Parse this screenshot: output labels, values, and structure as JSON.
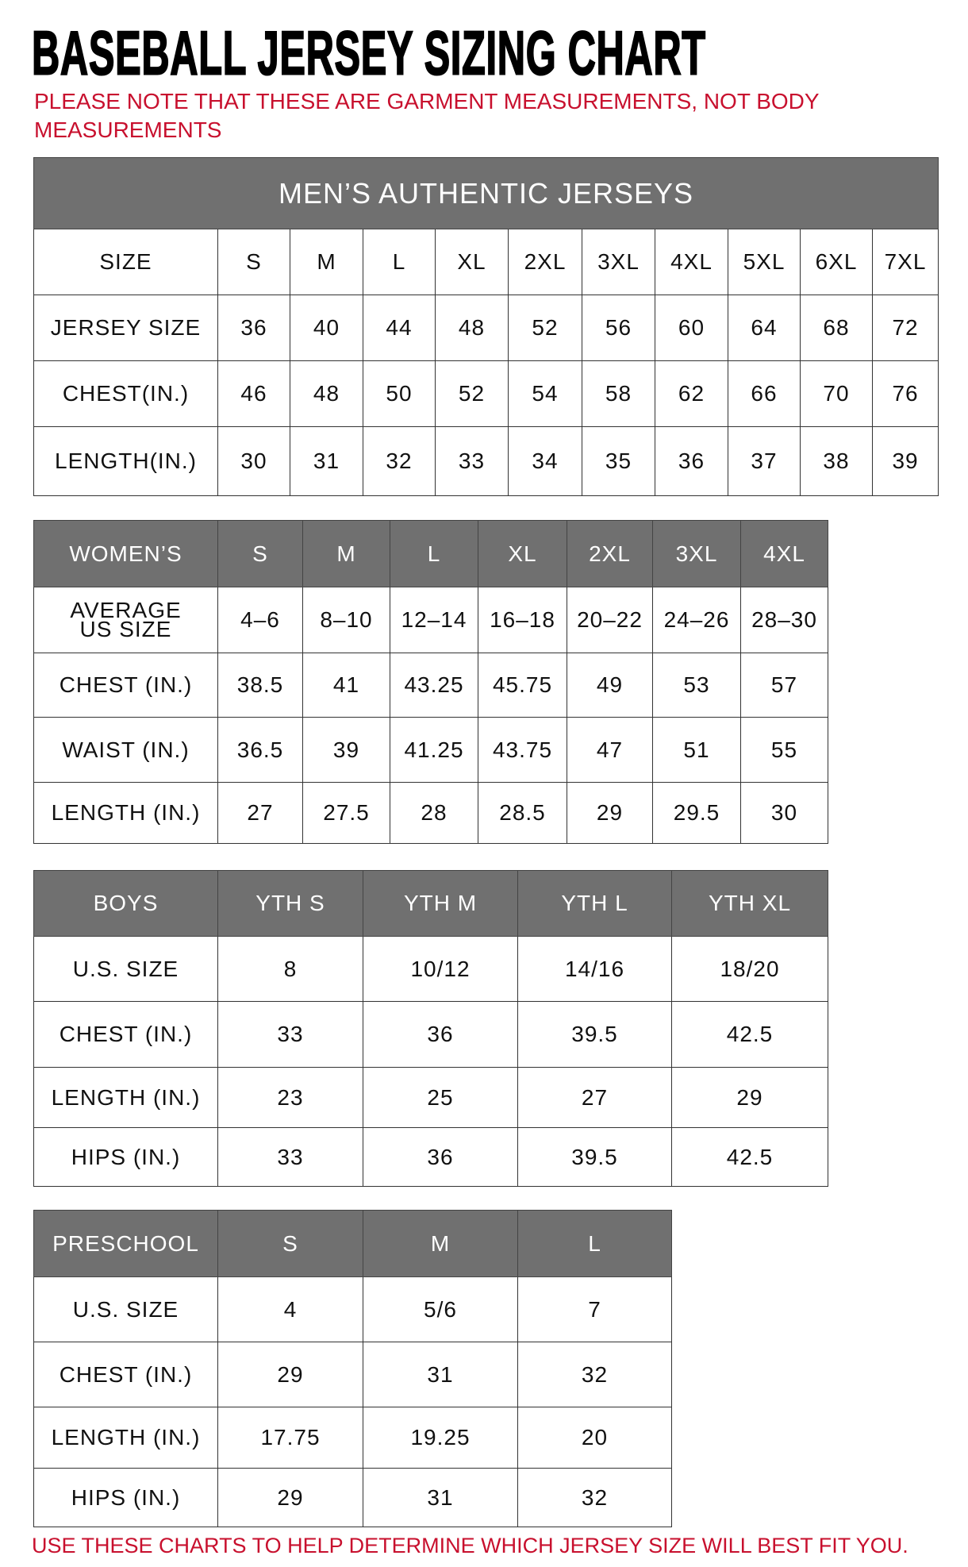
{
  "title": "BASEBALL JERSEY SIZING CHART",
  "note": "PLEASE NOTE THAT THESE ARE GARMENT MEASUREMENTS, NOT BODY MEASUREMENTS",
  "footer": "USE THESE CHARTS TO HELP DETERMINE WHICH JERSEY SIZE WILL BEST FIT YOU.",
  "colors": {
    "header_gray": "#707070",
    "note_red": "#c8102e"
  },
  "tables": [
    {
      "id": "mens",
      "banner": "MEN’S AUTHENTIC JERSEYS",
      "header": [
        "SIZE",
        "S",
        "M",
        "L",
        "XL",
        "2XL",
        "3XL",
        "4XL",
        "5XL",
        "6XL",
        "7XL"
      ],
      "header_shaded": false,
      "rows": [
        [
          "JERSEY SIZE",
          "36",
          "40",
          "44",
          "48",
          "52",
          "56",
          "60",
          "64",
          "68",
          "72"
        ],
        [
          "CHEST(IN.)",
          "46",
          "48",
          "50",
          "52",
          "54",
          "58",
          "62",
          "66",
          "70",
          "76"
        ],
        [
          "LENGTH(IN.)",
          "30",
          "31",
          "32",
          "33",
          "34",
          "35",
          "36",
          "37",
          "38",
          "39"
        ]
      ]
    },
    {
      "id": "womens",
      "header": [
        "WOMEN’S",
        "S",
        "M",
        "L",
        "XL",
        "2XL",
        "3XL",
        "4XL"
      ],
      "header_shaded": true,
      "rows": [
        [
          "AVERAGE US SIZE",
          "4–6",
          "8–10",
          "12–14",
          "16–18",
          "20–22",
          "24–26",
          "28–30"
        ],
        [
          "CHEST (IN.)",
          "38.5",
          "41",
          "43.25",
          "45.75",
          "49",
          "53",
          "57"
        ],
        [
          "WAIST (IN.)",
          "36.5",
          "39",
          "41.25",
          "43.75",
          "47",
          "51",
          "55"
        ],
        [
          "LENGTH (IN.)",
          "27",
          "27.5",
          "28",
          "28.5",
          "29",
          "29.5",
          "30"
        ]
      ]
    },
    {
      "id": "boys",
      "header": [
        "BOYS",
        "YTH S",
        "YTH M",
        "YTH L",
        "YTH XL"
      ],
      "header_shaded": true,
      "rows": [
        [
          "U.S. SIZE",
          "8",
          "10/12",
          "14/16",
          "18/20"
        ],
        [
          "CHEST (IN.)",
          "33",
          "36",
          "39.5",
          "42.5"
        ],
        [
          "LENGTH (IN.)",
          "23",
          "25",
          "27",
          "29"
        ],
        [
          "HIPS (IN.)",
          "33",
          "36",
          "39.5",
          "42.5"
        ]
      ]
    },
    {
      "id": "preschool",
      "header": [
        "PRESCHOOL",
        "S",
        "M",
        "L"
      ],
      "header_shaded": true,
      "rows": [
        [
          "U.S. SIZE",
          "4",
          "5/6",
          "7"
        ],
        [
          "CHEST (IN.)",
          "29",
          "31",
          "32"
        ],
        [
          "LENGTH (IN.)",
          "17.75",
          "19.25",
          "20"
        ],
        [
          "HIPS (IN.)",
          "29",
          "31",
          "32"
        ]
      ]
    }
  ]
}
